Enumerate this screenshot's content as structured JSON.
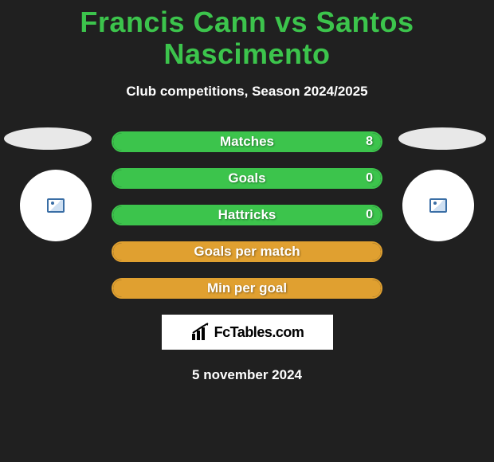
{
  "title": "Francis Cann vs Santos Nascimento",
  "subtitle": "Club competitions, Season 2024/2025",
  "colors": {
    "accent_green": "#3cc44c",
    "accent_orange": "#e0a030",
    "background": "#202020",
    "white": "#ffffff",
    "ellipse": "#e8e8e8"
  },
  "stats": [
    {
      "label": "Matches",
      "value": "8",
      "fill_pct": 100,
      "color": "#3cc44c",
      "show_value": true
    },
    {
      "label": "Goals",
      "value": "0",
      "fill_pct": 100,
      "color": "#3cc44c",
      "show_value": true
    },
    {
      "label": "Hattricks",
      "value": "0",
      "fill_pct": 100,
      "color": "#3cc44c",
      "show_value": true
    },
    {
      "label": "Goals per match",
      "value": "",
      "fill_pct": 100,
      "color": "#e0a030",
      "show_value": false
    },
    {
      "label": "Min per goal",
      "value": "",
      "fill_pct": 100,
      "color": "#e0a030",
      "show_value": false
    }
  ],
  "brand": "FcTables.com",
  "date": "5 november 2024"
}
